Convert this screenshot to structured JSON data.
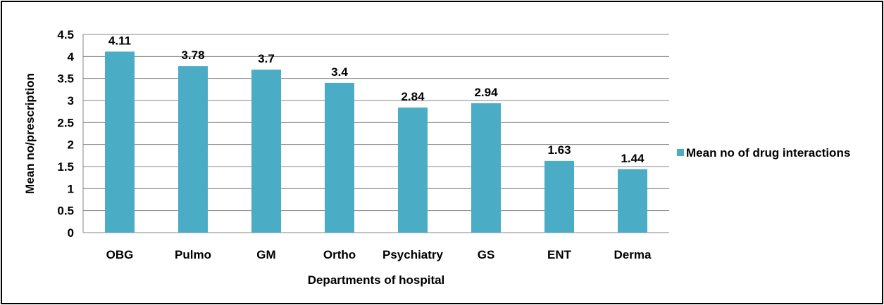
{
  "chart_data": {
    "type": "bar",
    "title": "",
    "xlabel": "Departments of hospital",
    "ylabel": "Mean no/prescription",
    "categories": [
      "OBG",
      "Pulmo",
      "GM",
      "Ortho",
      "Psychiatry",
      "GS",
      "ENT",
      "Derma"
    ],
    "series": [
      {
        "name": "Mean no of drug interactions",
        "values": [
          4.11,
          3.78,
          3.7,
          3.4,
          2.84,
          2.94,
          1.63,
          1.44
        ],
        "color": "#4BACC6"
      }
    ],
    "data_labels": [
      "4.11",
      "3.78",
      "3.7",
      "3.4",
      "2.84",
      "2.94",
      "1.63",
      "1.44"
    ],
    "ylim": [
      0,
      4.5
    ],
    "yticks": [
      "0",
      "0.5",
      "1",
      "1.5",
      "2",
      "2.5",
      "3",
      "3.5",
      "4",
      "4.5"
    ],
    "grid": true,
    "legend_placement": "right"
  }
}
